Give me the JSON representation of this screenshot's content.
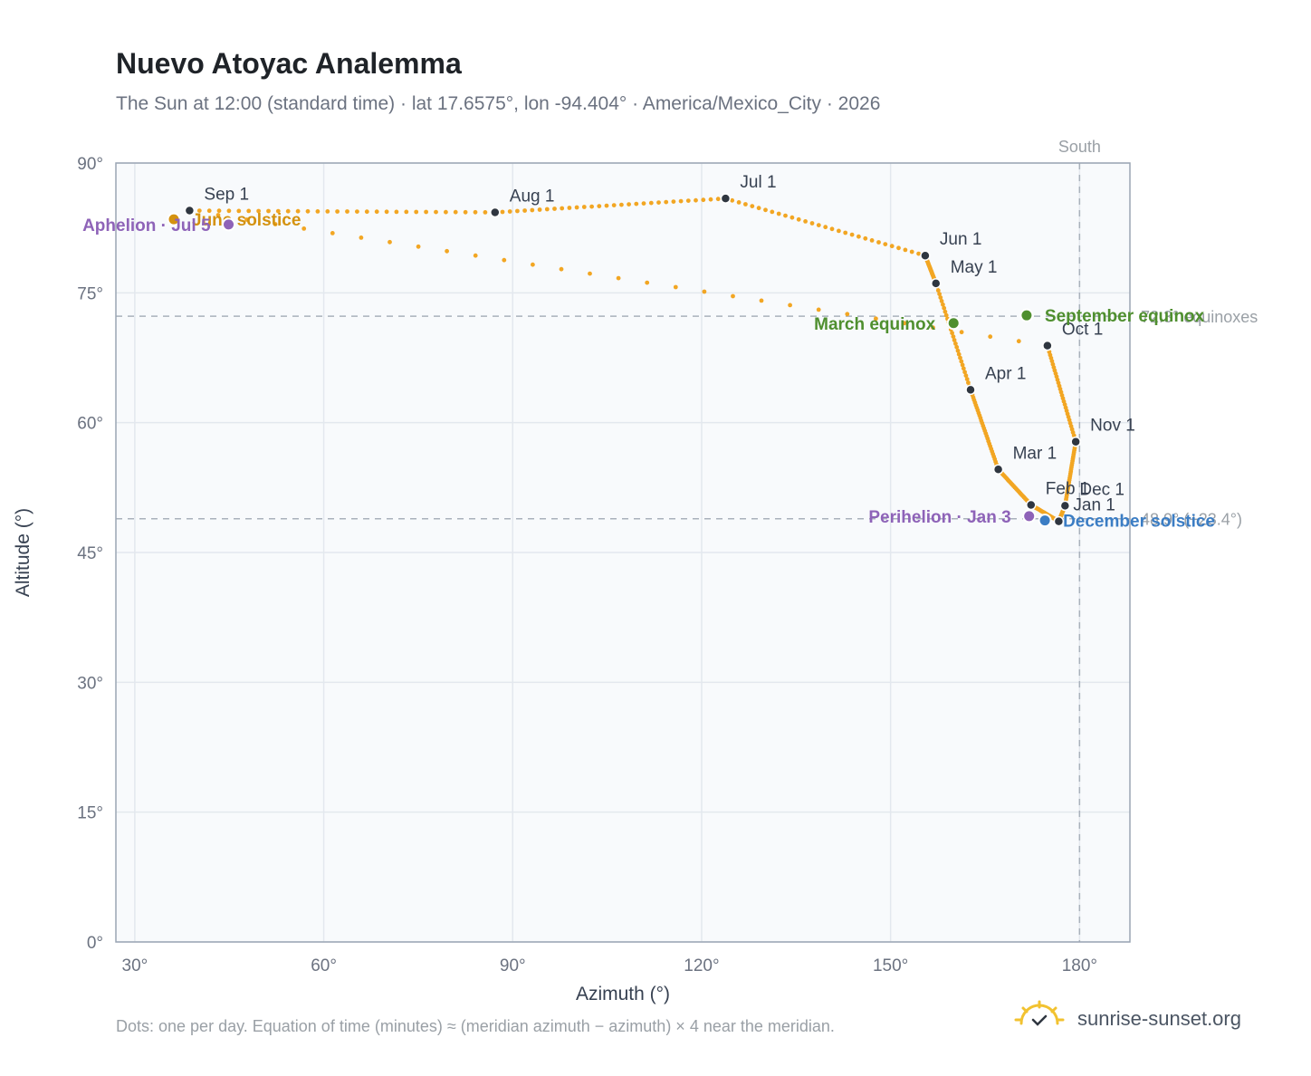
{
  "chart_data": {
    "type": "scatter",
    "title": "Nuevo Atoyac Analemma",
    "subtitle": "The Sun at 12:00 (standard time) · lat 17.6575°, lon -94.404° · America/Mexico_City · 2026",
    "xlabel": "Azimuth (°)",
    "ylabel": "Altitude (°)",
    "xlim": [
      27,
      188
    ],
    "ylim": [
      0,
      90
    ],
    "xticks": [
      30,
      60,
      90,
      120,
      150,
      180
    ],
    "xtick_labels": [
      "30°",
      "60°",
      "90°",
      "120°",
      "150°",
      "180°"
    ],
    "yticks": [
      0,
      15,
      30,
      45,
      60,
      75,
      90
    ],
    "ytick_labels": [
      "0°",
      "15°",
      "30°",
      "45°",
      "60°",
      "75°",
      "90°"
    ],
    "grid": true,
    "south_line": {
      "azimuth": 180,
      "label": "South"
    },
    "reference_lines": [
      {
        "altitude": 72.3,
        "label": "72.3° equinoxes"
      },
      {
        "altitude": 48.9,
        "label": "48.9° (+23.4°)"
      }
    ],
    "month_markers": [
      {
        "label": "Jan 1",
        "az": 176.7,
        "alt": 48.6
      },
      {
        "label": "Feb 1",
        "az": 172.3,
        "alt": 50.5
      },
      {
        "label": "Mar 1",
        "az": 167.1,
        "alt": 54.6
      },
      {
        "label": "Apr 1",
        "az": 162.7,
        "alt": 63.8
      },
      {
        "label": "May 1",
        "az": 157.2,
        "alt": 76.1
      },
      {
        "label": "Jun 1",
        "az": 155.5,
        "alt": 79.3
      },
      {
        "label": "Jul 1",
        "az": 123.8,
        "alt": 85.9
      },
      {
        "label": "Aug 1",
        "az": 87.2,
        "alt": 84.3
      },
      {
        "label": "Sep 1",
        "az": 38.7,
        "alt": 84.5
      },
      {
        "label": "Oct 1",
        "az": 174.9,
        "alt": 68.9
      },
      {
        "label": "Nov 1",
        "az": 179.4,
        "alt": 57.8
      },
      {
        "label": "Dec 1",
        "az": 177.7,
        "alt": 50.4
      }
    ],
    "events": [
      {
        "label": "March equinox",
        "az": 160.0,
        "alt": 71.5,
        "color": "#4f8f2f",
        "side": "left"
      },
      {
        "label": "September equinox",
        "az": 171.6,
        "alt": 72.4,
        "color": "#4f8f2f",
        "side": "right"
      },
      {
        "label": "June solstice",
        "az": 36.2,
        "alt": 83.5,
        "color": "#d4920f",
        "side": "right"
      },
      {
        "label": "December solstice",
        "az": 174.5,
        "alt": 48.7,
        "color": "#3b7dc4",
        "side": "right"
      },
      {
        "label": "Perihelion · Jan 3",
        "az": 172.0,
        "alt": 49.2,
        "color": "#8e63b8",
        "side": "left"
      },
      {
        "label": "Aphelion · Jul 5",
        "az": 44.9,
        "alt": 82.9,
        "color": "#8e63b8",
        "side": "left"
      }
    ],
    "footnote": "Dots: one per day. Equation of time (minutes) ≈ (meridian azimuth − azimuth) × 4 near the meridian."
  },
  "colors": {
    "curve": "#f2a623",
    "marker": "#2f3640",
    "grid": "#e3e8ee",
    "plot_bg": "#f8fafc",
    "frame": "#9aa5b4",
    "brand_sun": "#f2c230"
  },
  "brand": {
    "text": "sunrise-sunset.org",
    "icon": "sun-logo-icon"
  }
}
